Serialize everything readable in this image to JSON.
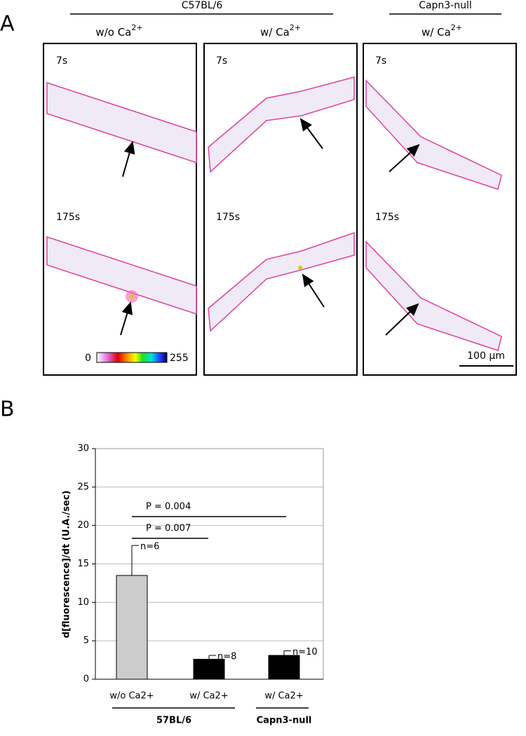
{
  "panel_a": {
    "label": "A",
    "groups": [
      "C57BL/6",
      "Capn3-null"
    ],
    "conditions": [
      {
        "text": "w/o Ca",
        "superscript": "2+"
      },
      {
        "text": "w/  Ca",
        "superscript": "2+"
      },
      {
        "text": "w/  Ca",
        "superscript": "2+"
      }
    ],
    "times": [
      "7s",
      "175s"
    ],
    "colorbar": {
      "min": "0",
      "max": "255"
    },
    "scale_bar": "100 µm"
  },
  "chart_data": {
    "type": "bar",
    "panel_label": "B",
    "ylabel": "d[fluorescence]/dt (U.A./sec)",
    "categories": [
      "w/o Ca2+",
      "w/ Ca2+",
      "w/ Ca2+"
    ],
    "values": [
      13.5,
      2.6,
      3.1
    ],
    "errors": [
      3.9,
      0.5,
      0.6
    ],
    "colors": [
      "#cccccc",
      "#000000",
      "#000000"
    ],
    "n_labels": [
      "n=6",
      "n=8",
      "n=10"
    ],
    "significance": [
      "P = 0.007",
      "P = 0.004"
    ],
    "groups": [
      "57BL/6",
      "Capn3-null"
    ],
    "ylim": [
      0,
      30
    ],
    "yticks": [
      0,
      5,
      10,
      15,
      20,
      25,
      30
    ],
    "grid": true
  }
}
